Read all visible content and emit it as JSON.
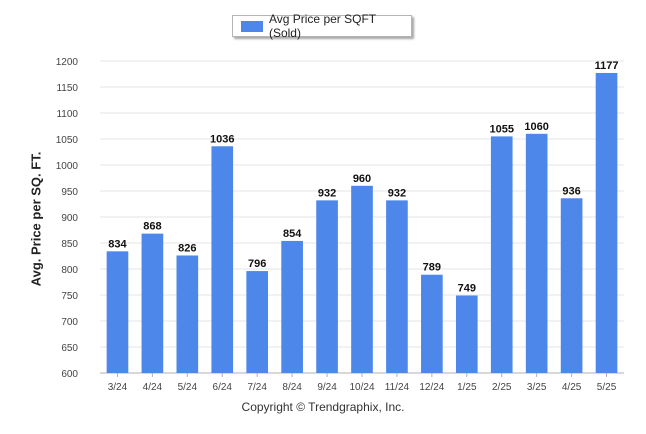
{
  "chart_data": {
    "type": "bar",
    "categories": [
      "3/24",
      "4/24",
      "5/24",
      "6/24",
      "7/24",
      "8/24",
      "9/24",
      "10/24",
      "11/24",
      "12/24",
      "1/25",
      "2/25",
      "3/25",
      "4/25",
      "5/25"
    ],
    "series": [
      {
        "name": "Avg Price per SQFT (Sold)",
        "values": [
          834,
          868,
          826,
          1036,
          796,
          854,
          932,
          960,
          932,
          789,
          749,
          1055,
          1060,
          936,
          1177
        ]
      }
    ],
    "ylabel": "Avg. Price per SQ. FT.",
    "ylim": [
      600,
      1200
    ],
    "yticks": [
      600,
      650,
      700,
      750,
      800,
      850,
      900,
      950,
      1000,
      1050,
      1100,
      1150,
      1200
    ],
    "grid": true,
    "legend_position": "top-center",
    "bar_color": "#4d87ea"
  },
  "footer": {
    "copyright": "Copyright © Trendgraphix, Inc."
  }
}
